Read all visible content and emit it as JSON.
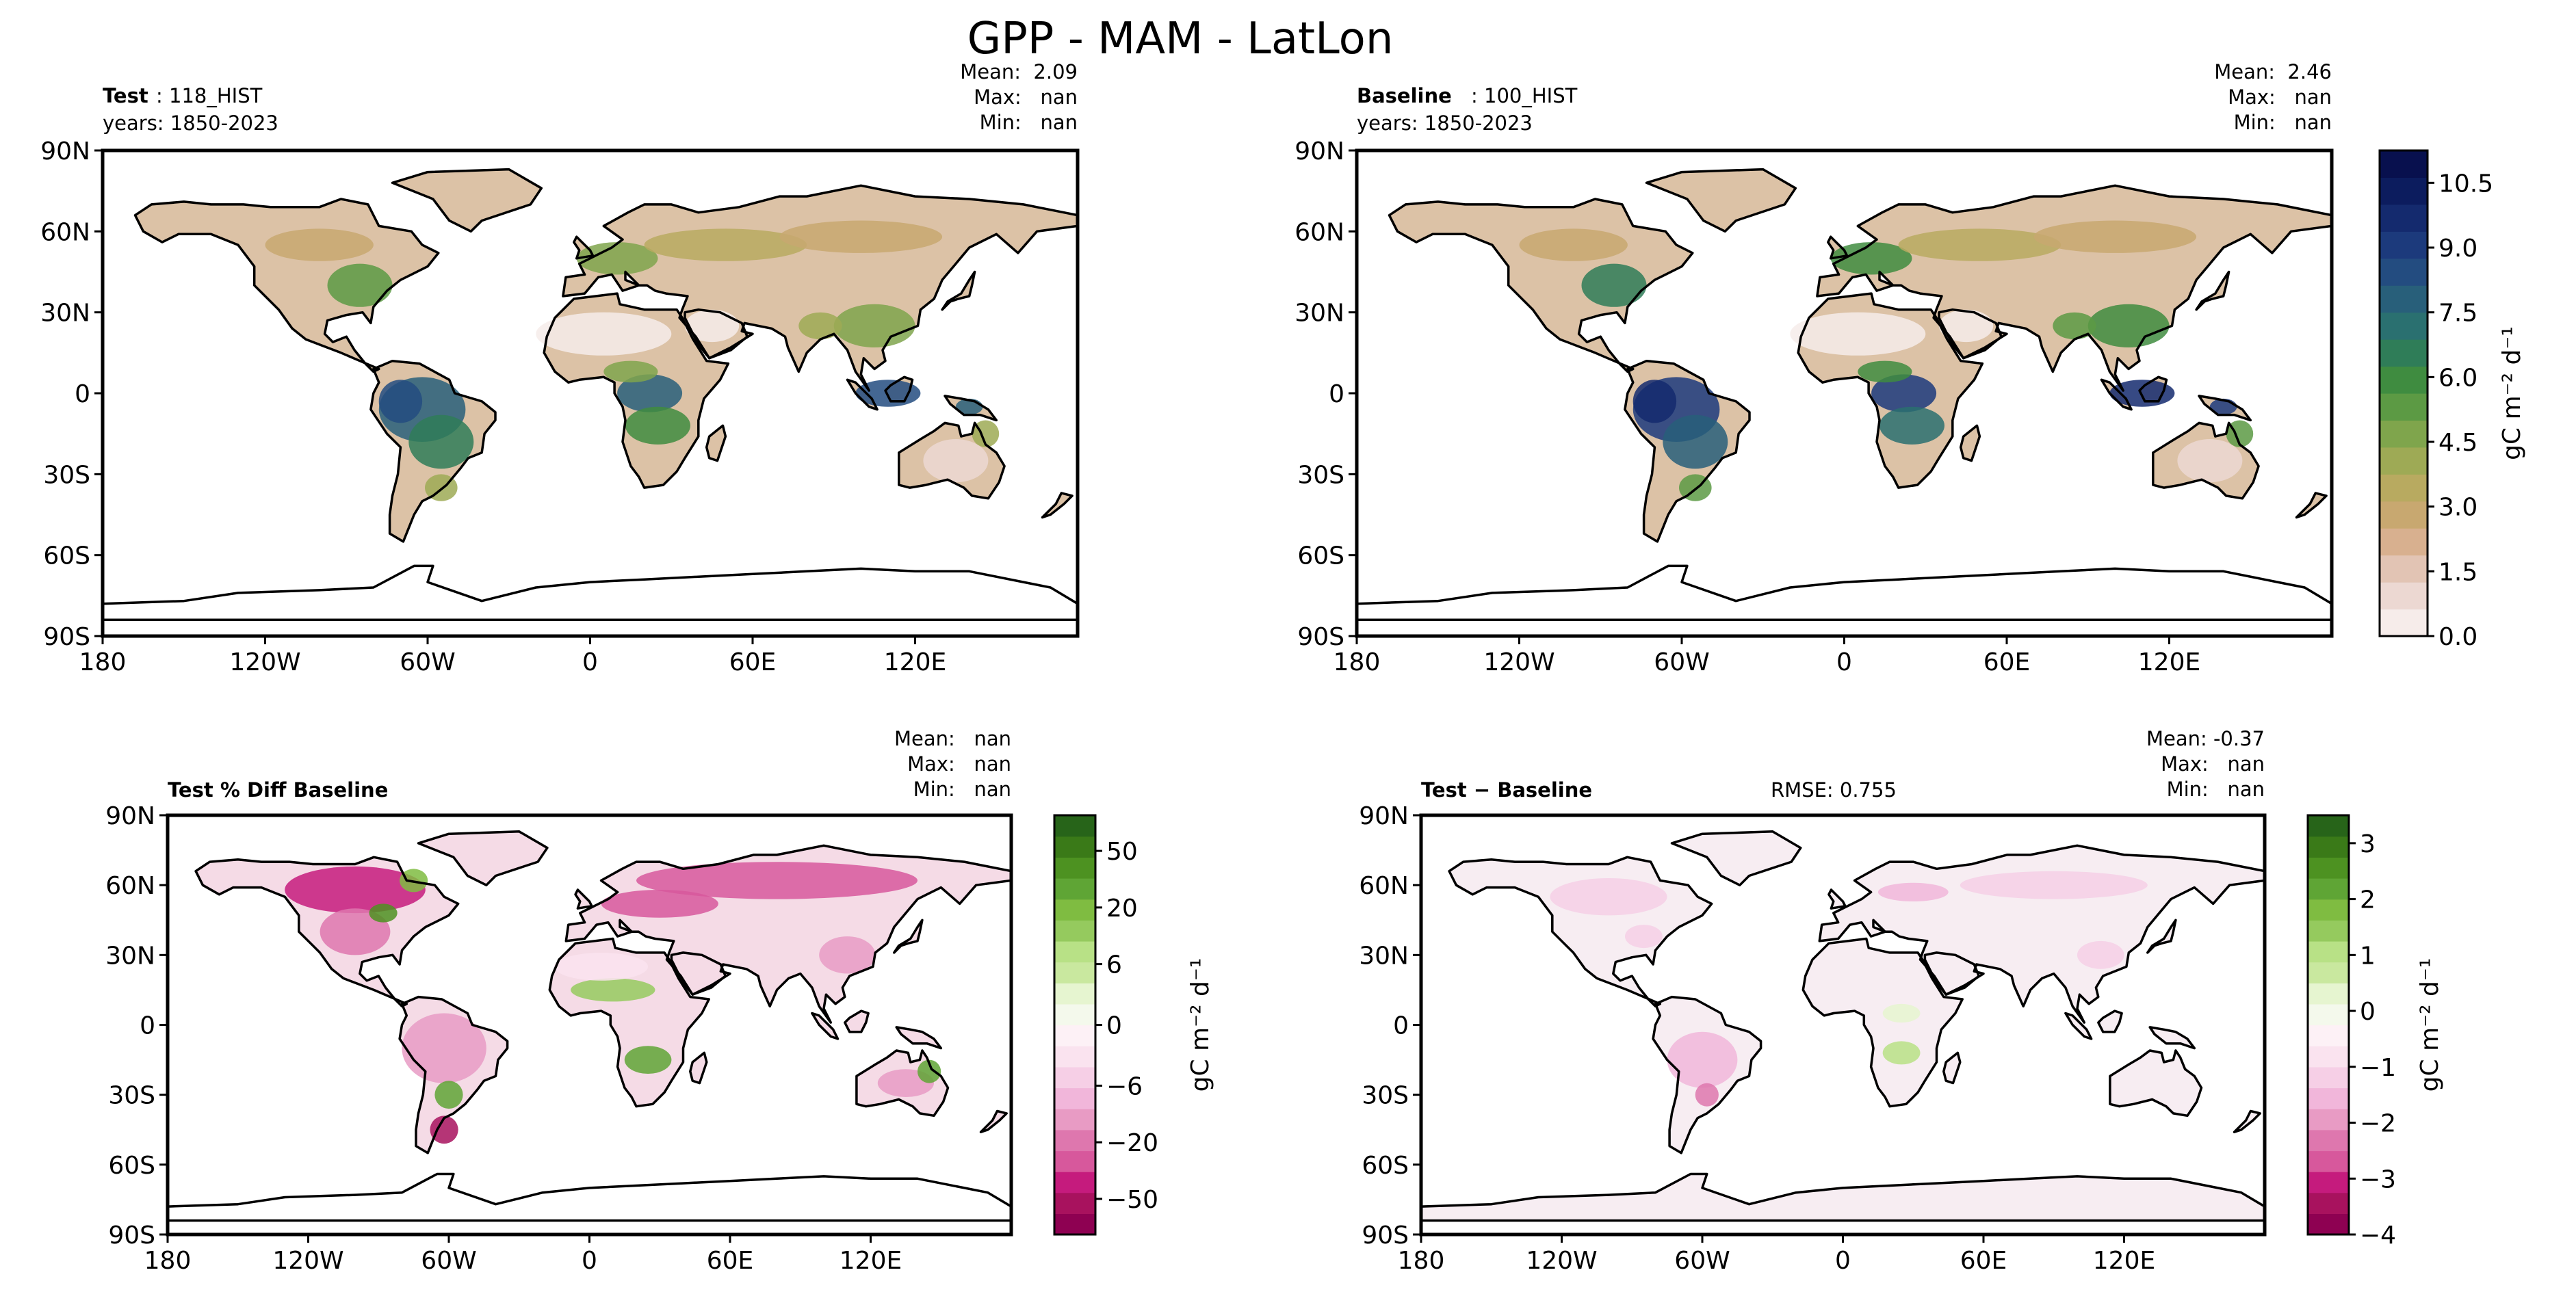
{
  "title": "GPP - MAM - LatLon",
  "colors": {
    "cmap_main": [
      "#f6ecea",
      "#ecd8d2",
      "#e2c4b4",
      "#d8b08f",
      "#c8a870",
      "#b8aa60",
      "#9eaa55",
      "#7fa54c",
      "#5c9a44",
      "#3f8c40",
      "#2f7d58",
      "#2a7070",
      "#285f7a",
      "#234c80",
      "#1c3a7c",
      "#142a6e",
      "#0c1c5e",
      "#08104e"
    ],
    "cmap_diff": [
      "#8e0152",
      "#a8125e",
      "#c51b7d",
      "#d7589c",
      "#de77ae",
      "#e89bc4",
      "#f1b6da",
      "#f6cfe6",
      "#fae3ef",
      "#fdf1f6",
      "#f4f9ec",
      "#e6f5d0",
      "#c9e89f",
      "#b8e186",
      "#95ca5e",
      "#7fbc41",
      "#5fa535",
      "#4d9221",
      "#3a7a18",
      "#276419"
    ],
    "land_main": "#dcc2a6",
    "land_diff": "#f5dbe6",
    "coast": "#000000"
  },
  "panels": [
    {
      "id": "test",
      "label_bold": "Test",
      "label_rest": ": 118_HIST",
      "years": "years: 1850-2023",
      "stats": [
        "Mean:  2.09",
        "Max:   nan",
        "Min:   nan"
      ]
    },
    {
      "id": "baseline",
      "label_bold": "Baseline",
      "label_rest": ": 100_HIST",
      "years": "years: 1850-2023",
      "stats": [
        "Mean:  2.46",
        "Max:   nan",
        "Min:   nan"
      ]
    },
    {
      "id": "pctdiff",
      "label_bold": "Test % Diff Baseline",
      "stats": [
        "Mean:   nan",
        "Max:   nan",
        "Min:   nan"
      ]
    },
    {
      "id": "diff",
      "label_bold": "Test − Baseline",
      "rmse": "RMSE: 0.755",
      "stats": [
        "Mean: -0.37",
        "Max:   nan",
        "Min:   nan"
      ]
    }
  ],
  "chart_data": [
    {
      "type": "heatmap",
      "title": "Test: 118_HIST",
      "xlabel": "",
      "ylabel": "",
      "xlim": [
        -180,
        180
      ],
      "ylim": [
        -90,
        90
      ],
      "x_ticks": [
        "180",
        "120W",
        "60W",
        "0",
        "60E",
        "120E"
      ],
      "y_ticks": [
        "90N",
        "60N",
        "30N",
        "0",
        "30S",
        "60S",
        "90S"
      ],
      "stats": {
        "mean": 2.09,
        "max": "nan",
        "min": "nan"
      }
    },
    {
      "type": "heatmap",
      "title": "Baseline: 100_HIST",
      "xlabel": "",
      "ylabel": "",
      "xlim": [
        -180,
        180
      ],
      "ylim": [
        -90,
        90
      ],
      "x_ticks": [
        "180",
        "120W",
        "60W",
        "0",
        "60E",
        "120E"
      ],
      "y_ticks": [
        "90N",
        "60N",
        "30N",
        "0",
        "30S",
        "60S",
        "90S"
      ],
      "stats": {
        "mean": 2.46,
        "max": "nan",
        "min": "nan"
      },
      "colorbar": {
        "label": "gC m⁻² d⁻¹",
        "range": [
          0,
          11.25
        ],
        "ticks": [
          0.0,
          1.5,
          3.0,
          4.5,
          6.0,
          7.5,
          9.0,
          10.5
        ],
        "tick_labels": [
          "0.0",
          "1.5",
          "3.0",
          "4.5",
          "6.0",
          "7.5",
          "9.0",
          "10.5"
        ]
      }
    },
    {
      "type": "heatmap",
      "title": "Test % Diff Baseline",
      "xlabel": "",
      "ylabel": "",
      "xlim": [
        -180,
        180
      ],
      "ylim": [
        -90,
        90
      ],
      "x_ticks": [
        "180",
        "120W",
        "60W",
        "0",
        "60E",
        "120E"
      ],
      "y_ticks": [
        "90N",
        "60N",
        "30N",
        "0",
        "30S",
        "60S",
        "90S"
      ],
      "stats": {
        "mean": "nan",
        "max": "nan",
        "min": "nan"
      },
      "colorbar": {
        "label": "gC m⁻² d⁻¹",
        "tick_labels": [
          "50",
          "20",
          "6",
          "0",
          "−6",
          "−20",
          "−50"
        ]
      }
    },
    {
      "type": "heatmap",
      "title": "Test − Baseline",
      "xlabel": "",
      "ylabel": "",
      "xlim": [
        -180,
        180
      ],
      "ylim": [
        -90,
        90
      ],
      "x_ticks": [
        "180",
        "120W",
        "60W",
        "0",
        "60E",
        "120E"
      ],
      "y_ticks": [
        "90N",
        "60N",
        "30N",
        "0",
        "30S",
        "60S",
        "90S"
      ],
      "stats": {
        "mean": -0.37,
        "max": "nan",
        "min": "nan",
        "rmse": 0.755
      },
      "colorbar": {
        "label": "gC m⁻² d⁻¹",
        "range": [
          -4,
          3.5
        ],
        "ticks": [
          3,
          2,
          1,
          0,
          -1,
          -2,
          -3,
          -4
        ],
        "tick_labels": [
          "3",
          "2",
          "1",
          "0",
          "−1",
          "−2",
          "−3",
          "−4"
        ]
      }
    }
  ]
}
